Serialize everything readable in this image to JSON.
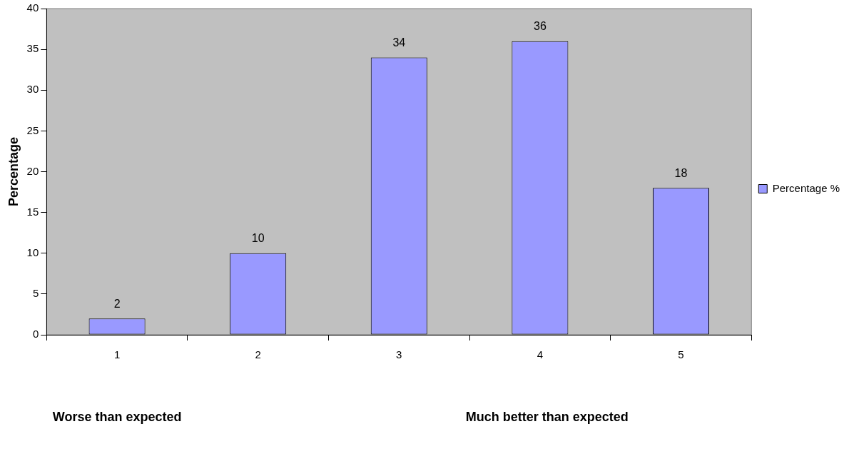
{
  "chart_data": {
    "type": "bar",
    "categories": [
      "1",
      "2",
      "3",
      "4",
      "5"
    ],
    "series": [
      {
        "name": "Percentage %",
        "color": "#9999ff",
        "values": [
          2,
          10,
          34,
          36,
          18
        ]
      }
    ],
    "ylabel": "Percentage",
    "ylim": [
      0,
      40
    ],
    "yticks": [
      0,
      5,
      10,
      15,
      20,
      25,
      30,
      35,
      40
    ],
    "data_labels": true,
    "grid": false,
    "legend": "right",
    "annotations": [
      "Worse than expected",
      "Much better than expected"
    ]
  }
}
